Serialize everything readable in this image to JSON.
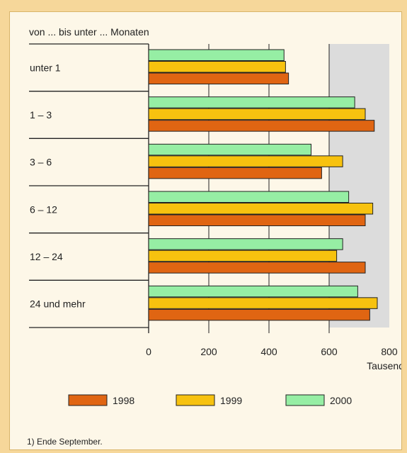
{
  "chart_data": {
    "type": "bar",
    "orientation": "horizontal",
    "title": "von ... bis unter ... Monaten",
    "categories": [
      "unter 1",
      "1 –  3",
      "3 –  6",
      "6 – 12",
      "12 – 24",
      "24 und mehr"
    ],
    "series": [
      {
        "name": "2000",
        "color": "#96eea4",
        "values": [
          450,
          685,
          540,
          665,
          645,
          695
        ]
      },
      {
        "name": "1999",
        "color": "#f7c20f",
        "values": [
          455,
          720,
          645,
          745,
          625,
          760
        ]
      },
      {
        "name": "1998",
        "color": "#e06512",
        "values": [
          465,
          750,
          575,
          720,
          720,
          735
        ]
      }
    ],
    "xlim": [
      0,
      800
    ],
    "xticks": [
      "0",
      "200",
      "400",
      "600",
      "800"
    ],
    "xunit": "Tausend",
    "grid": true,
    "legend": [
      "1998",
      "1999",
      "2000"
    ],
    "footnote": "1) Ende September."
  },
  "colors": {
    "page_background": "#f6d79a",
    "panel_background": "#fdf7e8",
    "highlight_band": "#dcdcdc"
  }
}
